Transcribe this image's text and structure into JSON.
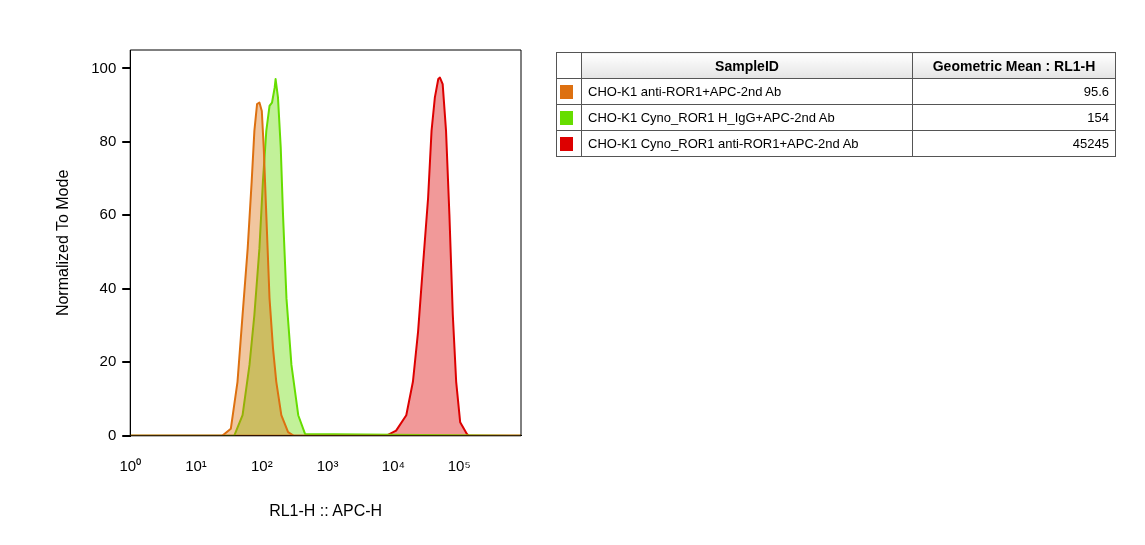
{
  "chart_data": {
    "type": "area",
    "xlabel": "RL1-H :: APC-H",
    "ylabel": "Normalized To Mode",
    "legend_title": "SampleID",
    "legend": "right",
    "log": "x",
    "grid": false,
    "xlim": [
      1,
      870000
    ],
    "xticks": [
      {
        "value": 1,
        "label": "10⁰"
      },
      {
        "value": 10,
        "label": "10¹"
      },
      {
        "value": 100,
        "label": "10²"
      },
      {
        "value": 1000,
        "label": "10³"
      },
      {
        "value": 10000,
        "label": "10⁴"
      },
      {
        "value": 100000,
        "label": "10⁵"
      }
    ],
    "ylim": [
      0,
      105
    ],
    "yticks": [
      0,
      20,
      40,
      60,
      80,
      100
    ],
    "annotations": [
      "Geometric Mean : RL1-H",
      "95.6",
      "154",
      "45245"
    ],
    "series": [
      {
        "name": "CHO-K1 anti-ROR1+APC-2nd Ab",
        "color": "#dd7010",
        "x": [
          1,
          25,
          33.8,
          42.7,
          51,
          61,
          70.2,
          77.1,
          84.7,
          92,
          100,
          107,
          117,
          131,
          148,
          166,
          198,
          251,
          307,
          870000
        ],
        "values": [
          0,
          0,
          1.9,
          14.7,
          32.9,
          51,
          69.3,
          83,
          90.3,
          90.7,
          88.4,
          78.4,
          60.2,
          37.4,
          23.8,
          14.7,
          5.6,
          1,
          0,
          0
        ]
      },
      {
        "name": "CHO-K1 Cyno_ROR1 H_IgG+APC-2nd Ab",
        "color": "#66dd00",
        "x": [
          1,
          38,
          51,
          65,
          77.1,
          92,
          104,
          117,
          131,
          143,
          157,
          162,
          176,
          194,
          210,
          237,
          282,
          358,
          454,
          870000
        ],
        "values": [
          0,
          0,
          5.6,
          19.3,
          32.9,
          51,
          69.3,
          83,
          89.8,
          90.7,
          94.8,
          97.1,
          92.1,
          78.4,
          60.2,
          37.4,
          19.3,
          5.6,
          0.5,
          0
        ]
      },
      {
        "name": "CHO-K1 Cyno_ROR1 anti-ROR1+APC-2nd Ab",
        "color": "#dd0000",
        "x": [
          1,
          7720,
          11000,
          15700,
          19800,
          23700,
          28200,
          33700,
          38000,
          42700,
          48100,
          51000,
          56100,
          63100,
          71000,
          80000,
          90000,
          103500,
          131000,
          139000,
          870000
        ],
        "values": [
          0,
          0,
          1.4,
          5.6,
          14.7,
          28.3,
          46.5,
          64.8,
          83,
          92.1,
          97.1,
          97.5,
          95.7,
          83,
          60.2,
          32.9,
          14.7,
          3.7,
          0.5,
          0,
          0
        ]
      }
    ]
  }
}
